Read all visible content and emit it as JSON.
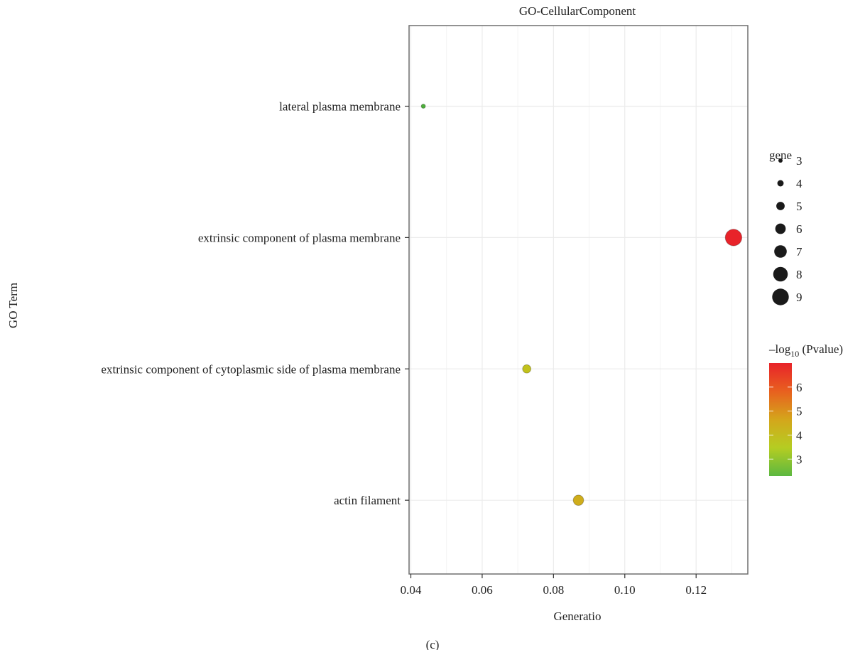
{
  "chart_data": {
    "type": "scatter",
    "title": "GO-CellularComponent",
    "xlabel": "Generatio",
    "ylabel": "GO Term",
    "xlim": [
      0.0395,
      0.1345
    ],
    "xticks": [
      0.04,
      0.06,
      0.08,
      0.1,
      0.12
    ],
    "xtick_labels": [
      "0.04",
      "0.06",
      "0.08",
      "0.10",
      "0.12"
    ],
    "categories": [
      "lateral plasma membrane",
      "extrinsic component of plasma membrane",
      "extrinsic component of cytoplasmic side of plasma membrane",
      "actin filament"
    ],
    "points": [
      {
        "term": "lateral plasma membrane",
        "generatio": 0.0435,
        "gene": 3,
        "neglog10p": 2.6,
        "color": "#4caf3a"
      },
      {
        "term": "extrinsic component of plasma membrane",
        "generatio": 0.1305,
        "gene": 9,
        "neglog10p": 6.9,
        "color": "#e8232a"
      },
      {
        "term": "extrinsic component of cytoplasmic side of plasma membrane",
        "generatio": 0.0725,
        "gene": 5,
        "neglog10p": 3.9,
        "color": "#c2c21c"
      },
      {
        "term": "actin filament",
        "generatio": 0.087,
        "gene": 6,
        "neglog10p": 4.5,
        "color": "#cfad1b"
      }
    ],
    "grid": true,
    "size_legend": {
      "title": "gene",
      "values": [
        3,
        4,
        5,
        6,
        7,
        8,
        9
      ],
      "labels": [
        "3",
        "4",
        "5",
        "6",
        "7",
        "8",
        "9"
      ]
    },
    "color_legend": {
      "title_prefix": "–log",
      "title_sub": "10",
      "title_suffix": " (Pvalue)",
      "min": 2.3,
      "max": 7.0,
      "ticks": [
        3,
        4,
        5,
        6
      ],
      "tick_labels": [
        "3",
        "4",
        "5",
        "6"
      ],
      "colors": [
        "#5cb840",
        "#b5cd22",
        "#d4a61b",
        "#e8601f",
        "#e8232a"
      ]
    },
    "legend_position": "right"
  },
  "caption": "(c)"
}
